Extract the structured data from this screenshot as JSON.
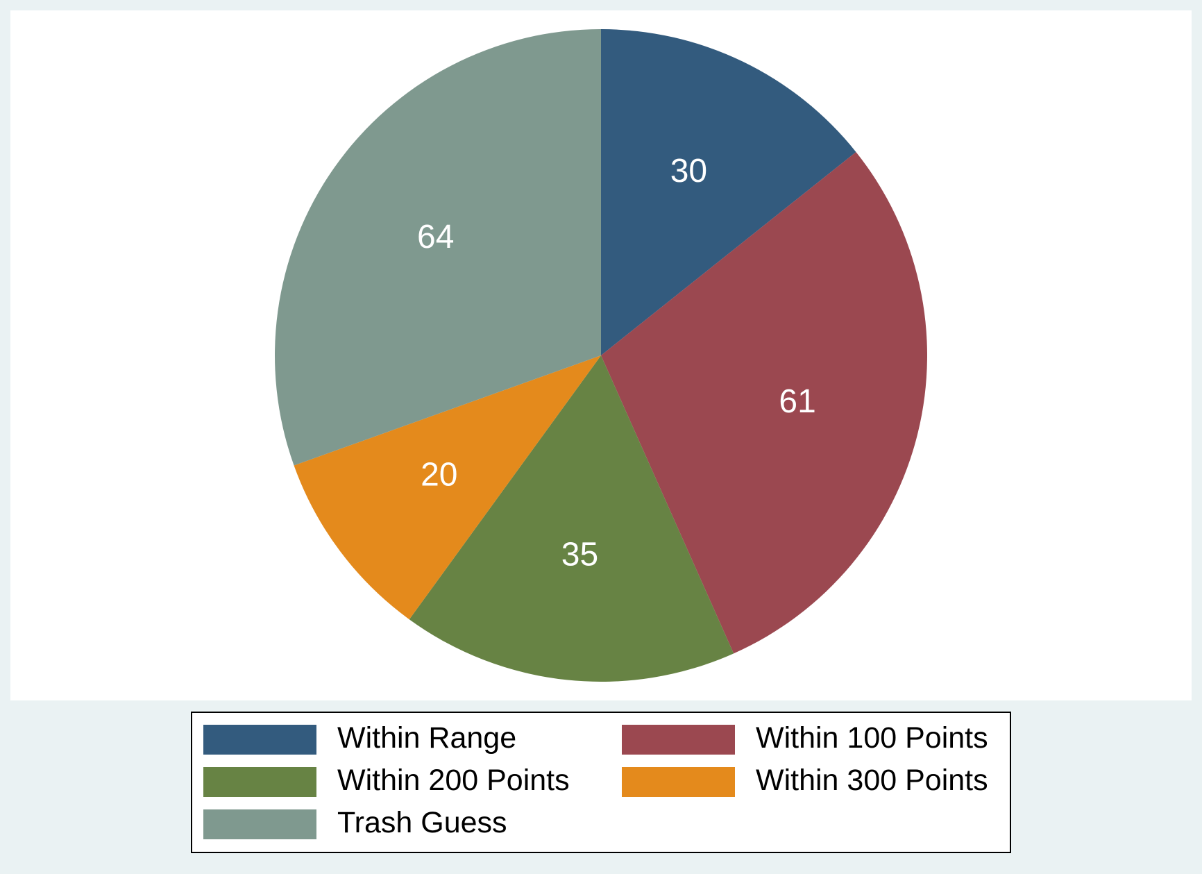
{
  "chart_data": {
    "type": "pie",
    "title": "",
    "start": "12 o'clock",
    "direction": "clockwise",
    "slices": [
      {
        "label": "Within Range",
        "value": 30,
        "value_label": "30",
        "color": "#335B7E"
      },
      {
        "label": "Within 100 Points",
        "value": 61,
        "value_label": "61",
        "color": "#9B4850"
      },
      {
        "label": "Within 200 Points",
        "value": 35,
        "value_label": "35",
        "color": "#678344"
      },
      {
        "label": "Within 300 Points",
        "value": 20,
        "value_label": "20",
        "color": "#E48A1C"
      },
      {
        "label": "Trash Guess",
        "value": 64,
        "value_label": "64",
        "color": "#7F998F"
      }
    ],
    "legend": {
      "placement": "bottom",
      "columns": 2
    }
  },
  "colors": {
    "background": "#EAF2F3",
    "plot_region": "#FFFFFF",
    "label_text": "#FFFFFF",
    "legend_border": "#000000"
  }
}
